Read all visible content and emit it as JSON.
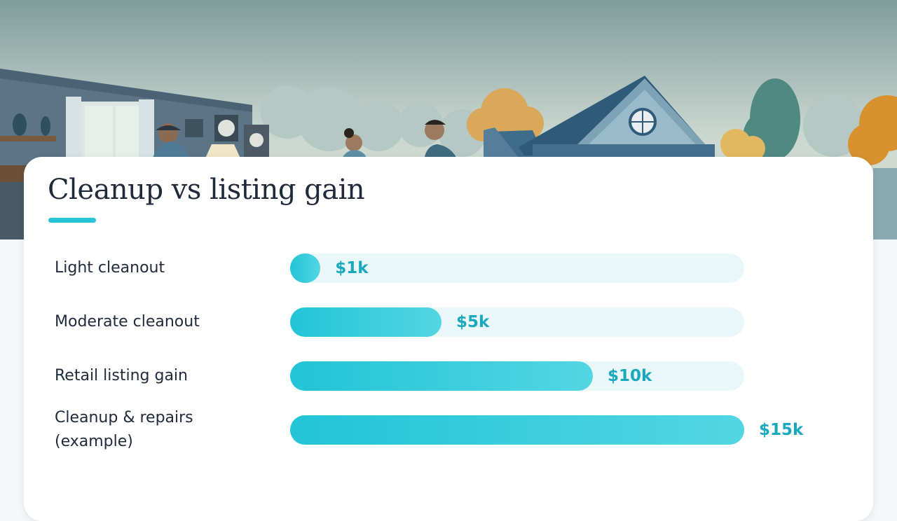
{
  "chart_data": {
    "type": "bar",
    "orientation": "horizontal",
    "title": "Cleanup vs listing gain",
    "xlabel": "",
    "ylabel": "",
    "xlim": [
      0,
      15
    ],
    "grid": false,
    "categories": [
      "Light cleanout",
      "Moderate cleanout",
      "Retail listing gain",
      "Cleanup & repairs\n(example)"
    ],
    "values": [
      1,
      5,
      10,
      15
    ],
    "value_labels": [
      "$1k",
      "$5k",
      "$10k",
      "$15k"
    ],
    "unit": "$k"
  },
  "colors": {
    "bar": "#22c4d6",
    "track": "#e9f7f9",
    "value_text": "#1aa8bd",
    "title_accent": "#27c3d8"
  },
  "hero": {
    "description_icon": "house-cleanout-illustration"
  }
}
